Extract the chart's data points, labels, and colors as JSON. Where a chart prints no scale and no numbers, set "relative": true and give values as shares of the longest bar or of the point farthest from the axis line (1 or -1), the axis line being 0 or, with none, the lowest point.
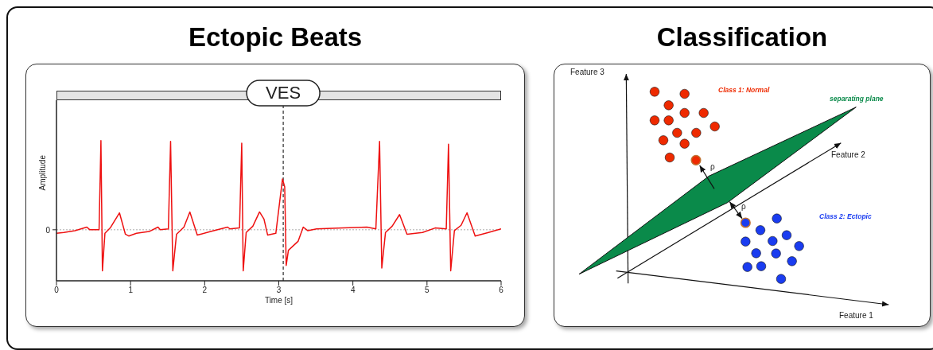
{
  "chart_data": [
    {
      "type": "line",
      "title": "Ectopic Beats",
      "xlabel": "Time [s]",
      "ylabel": "Amplitude",
      "relative": true,
      "xlim": [
        0,
        6
      ],
      "xticks": [
        0,
        1,
        2,
        3,
        4,
        5,
        6
      ],
      "x": [
        0,
        0.1,
        0.25,
        0.41,
        0.45,
        0.575,
        0.6,
        0.62,
        0.654,
        0.725,
        0.85,
        0.93,
        0.975,
        1.08,
        1.25,
        1.37,
        1.4,
        1.51,
        1.54,
        1.57,
        1.62,
        1.72,
        1.8,
        1.9,
        2.08,
        2.31,
        2.34,
        2.47,
        2.5,
        2.52,
        2.56,
        2.65,
        2.74,
        2.8,
        2.85,
        2.96,
        3.05,
        3.08,
        3.1,
        3.13,
        3.26,
        3.33,
        3.39,
        3.51,
        3.87,
        4.19,
        4.31,
        4.36,
        4.39,
        4.44,
        4.53,
        4.63,
        4.73,
        4.94,
        5.11,
        5.26,
        5.29,
        5.32,
        5.37,
        5.46,
        5.54,
        5.65,
        5.83,
        6.0
      ],
      "series": [
        {
          "color": "#ee1111",
          "values": [
            -0.04,
            -0.03,
            -0.01,
            0.03,
            0.0,
            0.0,
            1.0,
            -0.46,
            -0.04,
            0.02,
            0.19,
            -0.05,
            -0.07,
            -0.04,
            -0.02,
            0.03,
            0.0,
            0.01,
            0.99,
            -0.46,
            -0.05,
            0.03,
            0.2,
            -0.06,
            -0.02,
            0.03,
            0.01,
            0.02,
            0.97,
            -0.46,
            -0.03,
            0.04,
            0.2,
            0.12,
            -0.06,
            -0.04,
            0.57,
            0.48,
            -0.4,
            -0.23,
            -0.13,
            0.03,
            -0.01,
            0.01,
            0.02,
            0.03,
            0.01,
            0.99,
            -0.43,
            -0.03,
            0.04,
            0.17,
            -0.05,
            -0.03,
            0.02,
            0.01,
            0.96,
            -0.46,
            -0.01,
            0.05,
            0.19,
            -0.07,
            -0.03,
            0.01
          ]
        }
      ],
      "ref_lines": [
        {
          "axis": "x",
          "value": 3.06,
          "label": "VES",
          "line_style": "dashed",
          "color": "#000000"
        },
        {
          "axis": "y",
          "value": 0,
          "label": "0",
          "line_style": "dotted",
          "color": "#aaaaaa"
        }
      ]
    },
    {
      "type": "other",
      "title": "Classification",
      "annotations": [
        "Feature 3",
        "Class 1: Normal",
        "separating plane",
        "Feature 2",
        "ρ",
        "ρ",
        "Class 2: Ectopic",
        "Feature 1"
      ]
    }
  ]
}
